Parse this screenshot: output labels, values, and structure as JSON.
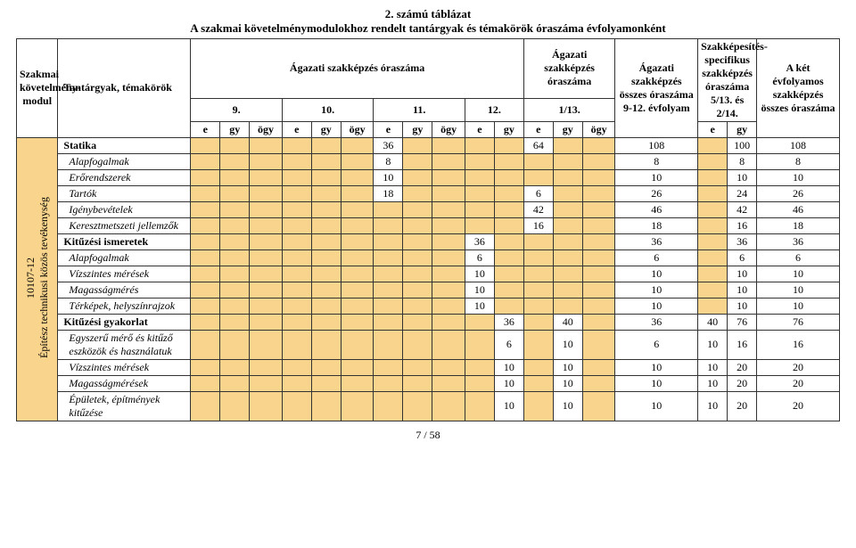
{
  "colors": {
    "band": "#f9d48c",
    "border": "#333333",
    "bg": "#ffffff"
  },
  "title1": "2. számú táblázat",
  "title2": "A szakmai követelménymodulokhoz rendelt tantárgyak és témakörök óraszáma évfolyamonként",
  "footer": "7 / 58",
  "head": {
    "c0": "Szakmai követelmény-modul",
    "c1": "Tantárgyak, témakörök",
    "grp1": "Ágazati szakképzés óraszáma",
    "g1a": "9.",
    "g1b": "10.",
    "g1c": "11.",
    "g1d": "12.",
    "grp2": "Ágazati szakképzés óraszáma",
    "g2a": "1/13.",
    "grp3": "Ágazati szakképzés összes óraszáma 9-12. évfolyam",
    "grp4": "Szakképesítés-specifikus szakképzés óraszáma 5/13. és 2/14.",
    "grp5": "A két évfolyamos szakképzés összes óraszáma",
    "u_e": "e",
    "u_gy": "gy",
    "u_ogy": "ögy"
  },
  "sideModule": "10107-12\nÉpítész technikusi közös tevékenység",
  "rows": [
    {
      "type": "bold",
      "label": "Statika",
      "c": [
        "",
        "",
        "",
        "",
        "",
        "",
        "36",
        "",
        "",
        "",
        "",
        "64",
        "",
        "108",
        "",
        "",
        "100",
        "",
        "108"
      ]
    },
    {
      "type": "it",
      "label": "Alapfogalmak",
      "c": [
        "",
        "",
        "",
        "",
        "",
        "",
        "8",
        "",
        "",
        "",
        "",
        "",
        "",
        "8",
        "",
        "",
        "8",
        "",
        "8"
      ]
    },
    {
      "type": "it",
      "label": "Erőrendszerek",
      "c": [
        "",
        "",
        "",
        "",
        "",
        "",
        "10",
        "",
        "",
        "",
        "",
        "",
        "",
        "10",
        "",
        "",
        "10",
        "",
        "10"
      ]
    },
    {
      "type": "it",
      "label": "Tartók",
      "c": [
        "",
        "",
        "",
        "",
        "",
        "",
        "18",
        "",
        "",
        "",
        "",
        "6",
        "",
        "26",
        "",
        "",
        "24",
        "",
        "26"
      ]
    },
    {
      "type": "it",
      "label": "Igénybevételek",
      "c": [
        "",
        "",
        "",
        "",
        "",
        "",
        "",
        "",
        "",
        "",
        "",
        "42",
        "",
        "46",
        "",
        "",
        "42",
        "",
        "46"
      ]
    },
    {
      "type": "it",
      "label": "Keresztmetszeti jellemzők",
      "c": [
        "",
        "",
        "",
        "",
        "",
        "",
        "",
        "",
        "",
        "",
        "",
        "16",
        "",
        "18",
        "",
        "",
        "16",
        "",
        "18"
      ]
    },
    {
      "type": "bold",
      "label": "Kitűzési ismeretek",
      "c": [
        "",
        "",
        "",
        "",
        "",
        "",
        "",
        "",
        "",
        "36",
        "",
        "",
        "",
        "36",
        "",
        "",
        "36",
        "",
        "36"
      ]
    },
    {
      "type": "it",
      "label": "Alapfogalmak",
      "c": [
        "",
        "",
        "",
        "",
        "",
        "",
        "",
        "",
        "",
        "6",
        "",
        "",
        "",
        "6",
        "",
        "",
        "6",
        "",
        "6"
      ]
    },
    {
      "type": "it",
      "label": "Vízszintes mérések",
      "c": [
        "",
        "",
        "",
        "",
        "",
        "",
        "",
        "",
        "",
        "10",
        "",
        "",
        "",
        "10",
        "",
        "",
        "10",
        "",
        "10"
      ]
    },
    {
      "type": "it",
      "label": "Magasságmérés",
      "c": [
        "",
        "",
        "",
        "",
        "",
        "",
        "",
        "",
        "",
        "10",
        "",
        "",
        "",
        "10",
        "",
        "",
        "10",
        "",
        "10"
      ]
    },
    {
      "type": "it",
      "label": "Térképek, helyszínrajzok",
      "c": [
        "",
        "",
        "",
        "",
        "",
        "",
        "",
        "",
        "",
        "10",
        "",
        "",
        "",
        "10",
        "",
        "",
        "10",
        "",
        "10"
      ]
    },
    {
      "type": "bold",
      "label": "Kitűzési gyakorlat",
      "c": [
        "",
        "",
        "",
        "",
        "",
        "",
        "",
        "",
        "",
        "",
        "36",
        "40",
        "",
        "",
        "36",
        "40",
        "76",
        "",
        "76"
      ]
    },
    {
      "type": "it",
      "label": "Egyszerű mérő és kitűző eszközök és használatuk",
      "c": [
        "",
        "",
        "",
        "",
        "",
        "",
        "",
        "",
        "",
        "",
        "6",
        "10",
        "",
        "",
        "6",
        "10",
        "16",
        "",
        "16"
      ]
    },
    {
      "type": "it",
      "label": "Vízszintes mérések",
      "c": [
        "",
        "",
        "",
        "",
        "",
        "",
        "",
        "",
        "",
        "",
        "10",
        "10",
        "",
        "",
        "10",
        "10",
        "20",
        "",
        "20"
      ]
    },
    {
      "type": "it",
      "label": "Magasságmérések",
      "c": [
        "",
        "",
        "",
        "",
        "",
        "",
        "",
        "",
        "",
        "",
        "10",
        "10",
        "",
        "",
        "10",
        "10",
        "20",
        "",
        "20"
      ]
    },
    {
      "type": "it",
      "label": "Épületek, építmények kitűzése",
      "c": [
        "",
        "",
        "",
        "",
        "",
        "",
        "",
        "",
        "",
        "",
        "10",
        "10",
        "",
        "",
        "10",
        "10",
        "20",
        "",
        "20"
      ]
    }
  ],
  "shadeCols": [
    2,
    3,
    4,
    5,
    6,
    7,
    8,
    9,
    10,
    11,
    12,
    13,
    14,
    16,
    17
  ]
}
